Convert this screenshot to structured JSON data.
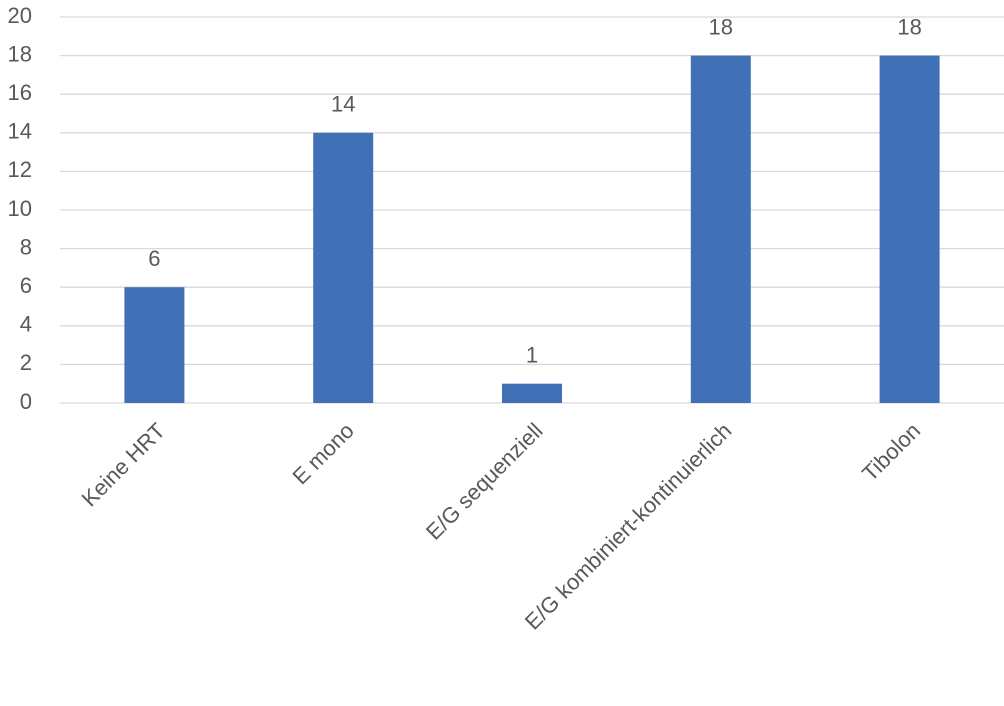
{
  "chart_data": {
    "type": "bar",
    "categories": [
      "Keine HRT",
      "E mono",
      "E/G sequenziell",
      "E/G kombiniert-kontinuierlich",
      "Tibolon"
    ],
    "values": [
      6,
      14,
      1,
      18,
      18
    ],
    "color": "#4070b5",
    "ylim": [
      0,
      20
    ],
    "yticks": [
      0,
      2,
      4,
      6,
      8,
      10,
      12,
      14,
      16,
      18,
      20
    ],
    "grid": true
  }
}
